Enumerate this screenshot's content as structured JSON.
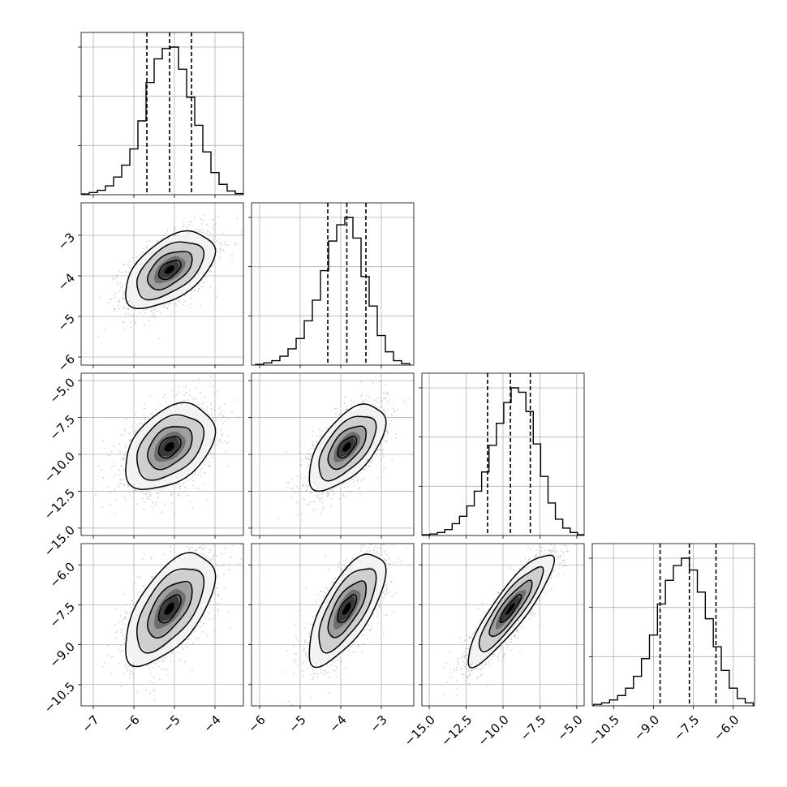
{
  "chart_data": {
    "type": "corner",
    "grid": true,
    "parameters": [
      {
        "range": [
          -7.3,
          -3.3
        ],
        "ticks": [
          -7,
          -6,
          -5,
          -4
        ],
        "tick_labels": [
          "−7",
          "−6",
          "−5",
          "−4"
        ],
        "quantiles": [
          -5.68,
          -5.12,
          -4.58
        ],
        "hist_centers": [
          -7.2,
          -7.0,
          -6.8,
          -6.6,
          -6.4,
          -6.2,
          -6.0,
          -5.8,
          -5.6,
          -5.4,
          -5.2,
          -5.0,
          -4.8,
          -4.6,
          -4.4,
          -4.2,
          -4.0,
          -3.8,
          -3.6,
          -3.4
        ],
        "hist_counts": [
          0.005,
          0.015,
          0.03,
          0.06,
          0.12,
          0.2,
          0.31,
          0.5,
          0.76,
          0.92,
          0.99,
          1.0,
          0.85,
          0.66,
          0.47,
          0.29,
          0.15,
          0.07,
          0.025,
          0.008
        ]
      },
      {
        "range": [
          -6.2,
          -2.2
        ],
        "ticks": [
          -6,
          -5,
          -4,
          -3
        ],
        "tick_labels": [
          "−6",
          "−5",
          "−4",
          "−3"
        ],
        "quantiles": [
          -4.32,
          -3.85,
          -3.38
        ],
        "hist_centers": [
          -6.0,
          -5.8,
          -5.6,
          -5.4,
          -5.2,
          -5.0,
          -4.8,
          -4.6,
          -4.4,
          -4.2,
          -4.0,
          -3.8,
          -3.6,
          -3.4,
          -3.2,
          -3.0,
          -2.8,
          -2.6,
          -2.4
        ],
        "hist_counts": [
          0.005,
          0.015,
          0.03,
          0.06,
          0.11,
          0.18,
          0.3,
          0.44,
          0.64,
          0.84,
          0.95,
          1.0,
          0.86,
          0.6,
          0.4,
          0.2,
          0.09,
          0.03,
          0.01
        ]
      },
      {
        "range": [
          -15.5,
          -4.5
        ],
        "ticks": [
          -15.0,
          -12.5,
          -10.0,
          -7.5,
          -5.0
        ],
        "tick_labels": [
          "−15.0",
          "−12.5",
          "−10.0",
          "−7.5",
          "−5.0"
        ],
        "quantiles": [
          -11.05,
          -9.5,
          -8.15
        ],
        "hist_centers": [
          -15.2,
          -14.7,
          -14.2,
          -13.7,
          -13.2,
          -12.7,
          -12.2,
          -11.7,
          -11.2,
          -10.7,
          -10.2,
          -9.7,
          -9.2,
          -8.7,
          -8.2,
          -7.7,
          -7.2,
          -6.7,
          -6.2,
          -5.7,
          -5.2,
          -4.7
        ],
        "hist_counts": [
          0.005,
          0.01,
          0.02,
          0.04,
          0.08,
          0.13,
          0.2,
          0.3,
          0.43,
          0.61,
          0.76,
          0.9,
          1.0,
          0.97,
          0.84,
          0.62,
          0.4,
          0.22,
          0.11,
          0.05,
          0.02,
          0.005
        ]
      },
      {
        "range": [
          -11.3,
          -5.2
        ],
        "ticks": [
          -10.5,
          -9.0,
          -7.5,
          -6.0
        ],
        "tick_labels": [
          "−10.5",
          "−9.0",
          "−7.5",
          "−6.0"
        ],
        "quantiles": [
          -8.75,
          -7.65,
          -6.65
        ],
        "hist_centers": [
          -11.1,
          -10.8,
          -10.5,
          -10.2,
          -9.9,
          -9.6,
          -9.3,
          -9.0,
          -8.7,
          -8.4,
          -8.1,
          -7.8,
          -7.5,
          -7.2,
          -6.9,
          -6.6,
          -6.3,
          -6.0,
          -5.7,
          -5.4
        ],
        "hist_counts": [
          0.01,
          0.02,
          0.04,
          0.07,
          0.12,
          0.2,
          0.32,
          0.48,
          0.69,
          0.85,
          0.95,
          1.0,
          0.92,
          0.77,
          0.59,
          0.4,
          0.24,
          0.12,
          0.05,
          0.02
        ]
      }
    ],
    "correlations": {
      "1_0": 0.52,
      "2_0": 0.4,
      "2_1": 0.6,
      "3_0": 0.6,
      "3_1": 0.7,
      "3_2": 0.88
    },
    "contour_levels_sigma": [
      0.5,
      1.0,
      1.5,
      2.0
    ]
  }
}
